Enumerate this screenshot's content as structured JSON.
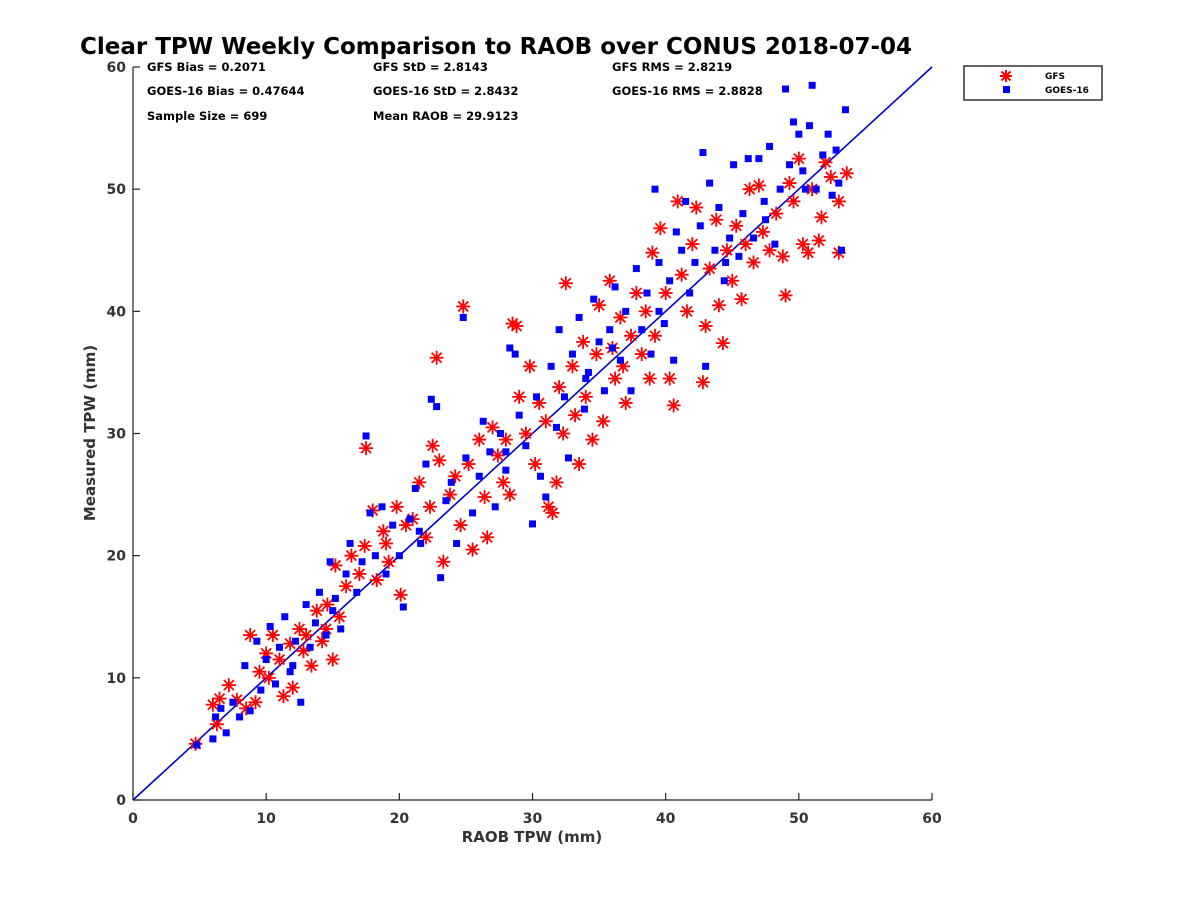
{
  "chart_data": {
    "type": "scatter",
    "title": "Clear TPW Weekly Comparison to RAOB over CONUS 2018-07-04",
    "xlabel": "RAOB TPW (mm)",
    "ylabel": "Measured TPW (mm)",
    "xlim": [
      0,
      60
    ],
    "ylim": [
      0,
      60
    ],
    "xticks": [
      "0",
      "10",
      "20",
      "30",
      "40",
      "50",
      "60"
    ],
    "yticks": [
      "0",
      "10",
      "20",
      "30",
      "40",
      "50",
      "60"
    ],
    "grid": false,
    "legend_position": "top-right",
    "reference_line": "1:1",
    "stats": {
      "gfs_bias": "GFS Bias = 0.2071",
      "goes_bias": "GOES-16 Bias = 0.47644",
      "sample_size": "Sample Size = 699",
      "gfs_std": "GFS StD = 2.8143",
      "goes_std": "GOES-16 StD = 2.8432",
      "mean_raob": "Mean RAOB = 29.9123",
      "gfs_rms": "GFS RMS = 2.8219",
      "goes_rms": "GOES-16 RMS = 2.8828"
    },
    "series": [
      {
        "name": "GFS",
        "marker": "asterisk",
        "color": "#ff0000",
        "points": [
          [
            4.7,
            4.6
          ],
          [
            6.0,
            7.8
          ],
          [
            6.3,
            6.2
          ],
          [
            6.5,
            8.3
          ],
          [
            7.2,
            9.4
          ],
          [
            7.8,
            8.2
          ],
          [
            8.5,
            7.5
          ],
          [
            8.8,
            13.5
          ],
          [
            9.2,
            8.0
          ],
          [
            9.5,
            10.5
          ],
          [
            10.0,
            12.0
          ],
          [
            10.2,
            10.0
          ],
          [
            10.5,
            13.5
          ],
          [
            11.0,
            11.5
          ],
          [
            11.3,
            8.5
          ],
          [
            11.8,
            12.8
          ],
          [
            12.0,
            9.2
          ],
          [
            12.5,
            14.0
          ],
          [
            13.0,
            13.5
          ],
          [
            13.4,
            11.0
          ],
          [
            13.8,
            15.5
          ],
          [
            14.2,
            13.0
          ],
          [
            14.6,
            16.0
          ],
          [
            15.0,
            11.5
          ],
          [
            15.2,
            19.2
          ],
          [
            15.5,
            15.0
          ],
          [
            16.0,
            17.5
          ],
          [
            16.4,
            20.0
          ],
          [
            17.0,
            18.5
          ],
          [
            17.4,
            20.8
          ],
          [
            17.5,
            28.8
          ],
          [
            18.0,
            23.7
          ],
          [
            18.3,
            18.0
          ],
          [
            18.8,
            22.0
          ],
          [
            19.2,
            19.5
          ],
          [
            19.8,
            24.0
          ],
          [
            20.1,
            16.8
          ],
          [
            20.5,
            22.5
          ],
          [
            21.0,
            23.0
          ],
          [
            21.5,
            26.0
          ],
          [
            22.0,
            21.5
          ],
          [
            22.5,
            29.0
          ],
          [
            22.8,
            36.2
          ],
          [
            23.0,
            27.8
          ],
          [
            23.3,
            19.5
          ],
          [
            23.8,
            25.0
          ],
          [
            24.2,
            26.5
          ],
          [
            24.6,
            22.5
          ],
          [
            24.8,
            40.4
          ],
          [
            25.2,
            27.5
          ],
          [
            25.5,
            20.5
          ],
          [
            26.0,
            29.5
          ],
          [
            26.4,
            24.8
          ],
          [
            26.6,
            21.5
          ],
          [
            27.0,
            30.5
          ],
          [
            27.4,
            28.2
          ],
          [
            28.0,
            29.5
          ],
          [
            28.3,
            25.0
          ],
          [
            28.5,
            39.0
          ],
          [
            28.8,
            38.8
          ],
          [
            29.0,
            33.0
          ],
          [
            29.5,
            30.0
          ],
          [
            29.8,
            35.5
          ],
          [
            30.2,
            27.5
          ],
          [
            30.5,
            32.5
          ],
          [
            31.0,
            31.0
          ],
          [
            31.2,
            24.0
          ],
          [
            31.5,
            23.5
          ],
          [
            31.8,
            26.0
          ],
          [
            32.0,
            33.8
          ],
          [
            32.3,
            30.0
          ],
          [
            32.5,
            42.3
          ],
          [
            33.0,
            35.5
          ],
          [
            33.2,
            31.5
          ],
          [
            33.5,
            27.5
          ],
          [
            33.8,
            37.5
          ],
          [
            34.0,
            33.0
          ],
          [
            34.5,
            29.5
          ],
          [
            34.8,
            36.5
          ],
          [
            35.0,
            40.5
          ],
          [
            35.3,
            31.0
          ],
          [
            35.8,
            42.5
          ],
          [
            36.0,
            37.0
          ],
          [
            36.2,
            34.5
          ],
          [
            36.6,
            39.5
          ],
          [
            37.0,
            32.5
          ],
          [
            37.4,
            38.0
          ],
          [
            37.8,
            41.5
          ],
          [
            38.2,
            36.5
          ],
          [
            38.5,
            40.0
          ],
          [
            38.8,
            34.5
          ],
          [
            39.0,
            44.8
          ],
          [
            39.2,
            38.0
          ],
          [
            39.6,
            46.8
          ],
          [
            40.0,
            41.5
          ],
          [
            40.3,
            34.5
          ],
          [
            40.6,
            32.3
          ],
          [
            40.9,
            49.0
          ],
          [
            41.2,
            43.0
          ],
          [
            41.6,
            40.0
          ],
          [
            42.0,
            45.5
          ],
          [
            42.3,
            48.5
          ],
          [
            42.8,
            34.2
          ],
          [
            43.0,
            38.8
          ],
          [
            43.3,
            43.5
          ],
          [
            43.8,
            47.5
          ],
          [
            44.0,
            40.5
          ],
          [
            44.3,
            37.4
          ],
          [
            44.6,
            45.0
          ],
          [
            45.0,
            42.5
          ],
          [
            45.3,
            47.0
          ],
          [
            45.7,
            41.0
          ],
          [
            46.0,
            45.5
          ],
          [
            46.3,
            50.0
          ],
          [
            46.6,
            44.0
          ],
          [
            47.0,
            50.3
          ],
          [
            47.3,
            46.5
          ],
          [
            47.8,
            45.0
          ],
          [
            48.3,
            48.0
          ],
          [
            48.8,
            44.5
          ],
          [
            49.0,
            41.3
          ],
          [
            49.3,
            50.5
          ],
          [
            49.6,
            49.0
          ],
          [
            50.0,
            52.5
          ],
          [
            50.3,
            45.5
          ],
          [
            50.7,
            44.8
          ],
          [
            51.0,
            50.0
          ],
          [
            51.5,
            45.8
          ],
          [
            51.7,
            47.7
          ],
          [
            52.0,
            52.2
          ],
          [
            52.4,
            51.0
          ],
          [
            53.0,
            49.0
          ],
          [
            53.0,
            44.8
          ],
          [
            53.6,
            51.3
          ],
          [
            12.8,
            12.2
          ],
          [
            14.5,
            14.0
          ],
          [
            19.0,
            21.0
          ],
          [
            22.3,
            24.0
          ],
          [
            27.8,
            26.0
          ],
          [
            36.8,
            35.5
          ]
        ]
      },
      {
        "name": "GOES-16",
        "marker": "square",
        "color": "#0000ff",
        "points": [
          [
            4.8,
            4.5
          ],
          [
            6.0,
            5.0
          ],
          [
            6.2,
            6.8
          ],
          [
            6.6,
            7.5
          ],
          [
            7.0,
            5.5
          ],
          [
            7.5,
            8.0
          ],
          [
            8.0,
            6.8
          ],
          [
            8.4,
            11.0
          ],
          [
            8.8,
            7.3
          ],
          [
            9.3,
            13.0
          ],
          [
            9.6,
            9.0
          ],
          [
            10.0,
            11.5
          ],
          [
            10.3,
            14.2
          ],
          [
            10.7,
            9.5
          ],
          [
            11.0,
            12.5
          ],
          [
            11.4,
            15.0
          ],
          [
            11.8,
            10.5
          ],
          [
            12.2,
            13.0
          ],
          [
            12.6,
            8.0
          ],
          [
            13.0,
            16.0
          ],
          [
            13.3,
            12.5
          ],
          [
            13.7,
            14.5
          ],
          [
            14.0,
            17.0
          ],
          [
            14.5,
            13.5
          ],
          [
            14.8,
            19.5
          ],
          [
            15.2,
            16.5
          ],
          [
            15.6,
            14.0
          ],
          [
            16.0,
            18.5
          ],
          [
            16.3,
            21.0
          ],
          [
            16.8,
            17.0
          ],
          [
            17.2,
            19.5
          ],
          [
            17.5,
            29.8
          ],
          [
            17.8,
            23.5
          ],
          [
            18.2,
            20.0
          ],
          [
            18.7,
            24.0
          ],
          [
            19.0,
            18.5
          ],
          [
            19.5,
            22.5
          ],
          [
            20.0,
            20.0
          ],
          [
            20.3,
            15.8
          ],
          [
            20.8,
            23.0
          ],
          [
            21.2,
            25.5
          ],
          [
            21.6,
            21.0
          ],
          [
            22.0,
            27.5
          ],
          [
            22.4,
            32.8
          ],
          [
            22.8,
            32.2
          ],
          [
            23.1,
            18.2
          ],
          [
            23.5,
            24.5
          ],
          [
            23.9,
            26.0
          ],
          [
            24.3,
            21.0
          ],
          [
            24.8,
            39.5
          ],
          [
            25.0,
            28.0
          ],
          [
            25.5,
            23.5
          ],
          [
            26.0,
            26.5
          ],
          [
            26.3,
            31.0
          ],
          [
            26.8,
            28.5
          ],
          [
            27.2,
            24.0
          ],
          [
            27.6,
            30.0
          ],
          [
            28.0,
            27.0
          ],
          [
            28.3,
            37.0
          ],
          [
            28.7,
            36.5
          ],
          [
            29.0,
            31.5
          ],
          [
            29.5,
            29.0
          ],
          [
            30.0,
            22.6
          ],
          [
            30.3,
            33.0
          ],
          [
            30.6,
            26.5
          ],
          [
            31.0,
            24.8
          ],
          [
            31.4,
            35.5
          ],
          [
            31.8,
            30.5
          ],
          [
            32.0,
            38.5
          ],
          [
            32.4,
            33.0
          ],
          [
            32.7,
            28.0
          ],
          [
            33.0,
            36.5
          ],
          [
            33.5,
            39.5
          ],
          [
            33.9,
            32.0
          ],
          [
            34.2,
            35.0
          ],
          [
            34.6,
            41.0
          ],
          [
            35.0,
            37.5
          ],
          [
            35.4,
            33.5
          ],
          [
            35.8,
            38.5
          ],
          [
            36.2,
            42.0
          ],
          [
            36.6,
            36.0
          ],
          [
            37.0,
            40.0
          ],
          [
            37.4,
            33.5
          ],
          [
            37.8,
            43.5
          ],
          [
            38.2,
            38.5
          ],
          [
            38.6,
            41.5
          ],
          [
            38.9,
            36.5
          ],
          [
            39.2,
            50.0
          ],
          [
            39.5,
            44.0
          ],
          [
            39.9,
            39.0
          ],
          [
            40.3,
            42.5
          ],
          [
            40.6,
            36.0
          ],
          [
            40.8,
            46.5
          ],
          [
            41.2,
            45.0
          ],
          [
            41.5,
            49.0
          ],
          [
            41.8,
            41.5
          ],
          [
            42.2,
            44.0
          ],
          [
            42.6,
            47.0
          ],
          [
            42.8,
            53.0
          ],
          [
            43.0,
            35.5
          ],
          [
            43.3,
            50.5
          ],
          [
            43.7,
            45.0
          ],
          [
            44.0,
            48.5
          ],
          [
            44.4,
            42.5
          ],
          [
            44.8,
            46.0
          ],
          [
            45.1,
            52.0
          ],
          [
            45.5,
            44.5
          ],
          [
            45.8,
            48.0
          ],
          [
            46.2,
            52.5
          ],
          [
            46.6,
            46.0
          ],
          [
            47.0,
            52.5
          ],
          [
            47.4,
            49.0
          ],
          [
            47.8,
            53.5
          ],
          [
            48.2,
            45.5
          ],
          [
            48.6,
            50.0
          ],
          [
            49.0,
            58.2
          ],
          [
            49.3,
            52.0
          ],
          [
            49.6,
            55.5
          ],
          [
            50.0,
            54.5
          ],
          [
            50.3,
            51.5
          ],
          [
            50.8,
            55.2
          ],
          [
            51.0,
            58.5
          ],
          [
            51.3,
            50.0
          ],
          [
            51.8,
            52.8
          ],
          [
            52.2,
            54.5
          ],
          [
            52.5,
            49.5
          ],
          [
            52.8,
            53.2
          ],
          [
            53.2,
            45.0
          ],
          [
            53.5,
            56.5
          ],
          [
            53.0,
            50.5
          ],
          [
            12.0,
            11.0
          ],
          [
            15.0,
            15.5
          ],
          [
            21.5,
            22.0
          ],
          [
            28.0,
            28.5
          ],
          [
            34.0,
            34.5
          ],
          [
            39.5,
            40.0
          ],
          [
            44.5,
            44.0
          ],
          [
            47.5,
            47.5
          ],
          [
            50.5,
            50.0
          ],
          [
            36.0,
            37.0
          ]
        ]
      }
    ]
  }
}
